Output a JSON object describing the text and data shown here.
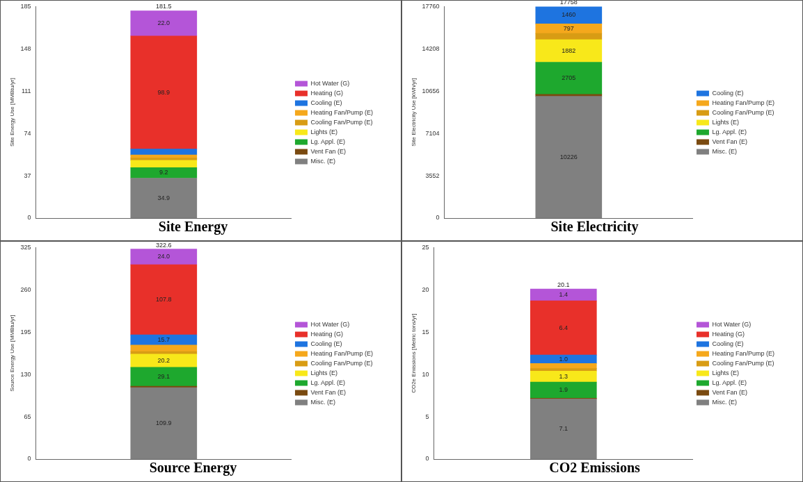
{
  "chart_data": [
    {
      "type": "bar",
      "title": "Site Energy",
      "ylabel": "Site Energy Use [MMBtu/yr]",
      "categories": [
        null
      ],
      "stacked": true,
      "ylim": [
        0,
        185
      ],
      "yticks": [
        0,
        37,
        74,
        111,
        148,
        185
      ],
      "grid": false,
      "legend": "right",
      "tick_labels": "y",
      "totals": [
        "181.5"
      ],
      "series": [
        {
          "name": "Misc. (E)",
          "color": "#808080",
          "values": [
            34.9
          ],
          "value_labels": [
            "34.9"
          ]
        },
        {
          "name": "Vent Fan (E)",
          "color": "#7a4a10",
          "values": [
            null
          ],
          "value_labels": [
            null
          ]
        },
        {
          "name": "Lg. Appl. (E)",
          "color": "#1ea82e",
          "values": [
            9.2
          ],
          "value_labels": [
            "9.2"
          ]
        },
        {
          "name": "Lights (E)",
          "color": "#f8e81a",
          "values": [
            6.4
          ],
          "value_labels": [
            null
          ]
        },
        {
          "name": "Cooling Fan/Pump (E)",
          "color": "#d89c14",
          "values": [
            2.0
          ],
          "value_labels": [
            null
          ]
        },
        {
          "name": "Heating Fan/Pump (E)",
          "color": "#f5a81c",
          "values": [
            2.7
          ],
          "value_labels": [
            null
          ]
        },
        {
          "name": "Cooling (E)",
          "color": "#1e74e0",
          "values": [
            5.2
          ],
          "value_labels": [
            null
          ]
        },
        {
          "name": "Heating (G)",
          "color": "#e8302a",
          "values": [
            98.9
          ],
          "value_labels": [
            "98.9"
          ]
        },
        {
          "name": "Hot Water (G)",
          "color": "#b455d8",
          "values": [
            22.0
          ],
          "value_labels": [
            "22.0"
          ]
        }
      ]
    },
    {
      "type": "bar",
      "title": "Site Electricity",
      "ylabel": "Site Electricity Use [kWh/yr]",
      "categories": [
        null
      ],
      "stacked": true,
      "ylim": [
        0,
        17760
      ],
      "yticks": [
        0,
        3552,
        7104,
        10656,
        14208,
        17760
      ],
      "grid": false,
      "legend": "right",
      "tick_labels": "y",
      "totals": [
        "17758"
      ],
      "series": [
        {
          "name": "Misc. (E)",
          "color": "#808080",
          "values": [
            10226
          ],
          "value_labels": [
            "10226"
          ]
        },
        {
          "name": "Vent Fan (E)",
          "color": "#7a4a10",
          "values": [
            160
          ],
          "value_labels": [
            null
          ]
        },
        {
          "name": "Lg. Appl. (E)",
          "color": "#1ea82e",
          "values": [
            2705
          ],
          "value_labels": [
            "2705"
          ]
        },
        {
          "name": "Lights (E)",
          "color": "#f8e81a",
          "values": [
            1882
          ],
          "value_labels": [
            "1882"
          ]
        },
        {
          "name": "Cooling Fan/Pump (E)",
          "color": "#d89c14",
          "values": [
            530
          ],
          "value_labels": [
            null
          ]
        },
        {
          "name": "Heating Fan/Pump (E)",
          "color": "#f5a81c",
          "values": [
            797
          ],
          "value_labels": [
            "797"
          ]
        },
        {
          "name": "Cooling (E)",
          "color": "#1e74e0",
          "values": [
            1460
          ],
          "value_labels": [
            "1460"
          ]
        }
      ]
    },
    {
      "type": "bar",
      "title": "Source Energy",
      "ylabel": "Source Energy Use [MMBtu/yr]",
      "categories": [
        null
      ],
      "stacked": true,
      "ylim": [
        0,
        325
      ],
      "yticks": [
        0,
        65,
        130,
        195,
        260,
        325
      ],
      "grid": false,
      "legend": "right",
      "tick_labels": "y",
      "totals": [
        "322.6"
      ],
      "series": [
        {
          "name": "Misc. (E)",
          "color": "#808080",
          "values": [
            109.9
          ],
          "value_labels": [
            "109.9"
          ]
        },
        {
          "name": "Vent Fan (E)",
          "color": "#7a4a10",
          "values": [
            2.0
          ],
          "value_labels": [
            null
          ]
        },
        {
          "name": "Lg. Appl. (E)",
          "color": "#1ea82e",
          "values": [
            29.1
          ],
          "value_labels": [
            "29.1"
          ]
        },
        {
          "name": "Lights (E)",
          "color": "#f8e81a",
          "values": [
            20.2
          ],
          "value_labels": [
            "20.2"
          ]
        },
        {
          "name": "Cooling Fan/Pump (E)",
          "color": "#d89c14",
          "values": [
            4
          ],
          "value_labels": [
            null
          ]
        },
        {
          "name": "Heating Fan/Pump (E)",
          "color": "#f5a81c",
          "values": [
            10
          ],
          "value_labels": [
            null
          ]
        },
        {
          "name": "Cooling (E)",
          "color": "#1e74e0",
          "values": [
            15.7
          ],
          "value_labels": [
            "15.7"
          ]
        },
        {
          "name": "Heating (G)",
          "color": "#e8302a",
          "values": [
            107.8
          ],
          "value_labels": [
            "107.8"
          ]
        },
        {
          "name": "Hot Water (G)",
          "color": "#b455d8",
          "values": [
            24.0
          ],
          "value_labels": [
            "24.0"
          ]
        }
      ]
    },
    {
      "type": "bar",
      "title": "CO2 Emissions",
      "ylabel": "CO2e Emissions [Metric tons/yr]",
      "categories": [
        null
      ],
      "stacked": true,
      "ylim": [
        0,
        25
      ],
      "yticks": [
        0,
        5,
        10,
        15,
        20,
        25
      ],
      "grid": false,
      "legend": "right",
      "tick_labels": "y",
      "totals": [
        "20.1"
      ],
      "series": [
        {
          "name": "Misc. (E)",
          "color": "#808080",
          "values": [
            7.1
          ],
          "value_labels": [
            "7.1"
          ]
        },
        {
          "name": "Vent Fan (E)",
          "color": "#7a4a10",
          "values": [
            0.1
          ],
          "value_labels": [
            null
          ]
        },
        {
          "name": "Lg. Appl. (E)",
          "color": "#1ea82e",
          "values": [
            1.9
          ],
          "value_labels": [
            "1.9"
          ]
        },
        {
          "name": "Lights (E)",
          "color": "#f8e81a",
          "values": [
            1.3
          ],
          "value_labels": [
            "1.3"
          ]
        },
        {
          "name": "Cooling Fan/Pump (E)",
          "color": "#d89c14",
          "values": [
            0.3
          ],
          "value_labels": [
            null
          ]
        },
        {
          "name": "Heating Fan/Pump (E)",
          "color": "#f5a81c",
          "values": [
            0.6
          ],
          "value_labels": [
            null
          ]
        },
        {
          "name": "Cooling (E)",
          "color": "#1e74e0",
          "values": [
            1.0
          ],
          "value_labels": [
            "1.0"
          ]
        },
        {
          "name": "Heating (G)",
          "color": "#e8302a",
          "values": [
            6.4
          ],
          "value_labels": [
            "6.4"
          ]
        },
        {
          "name": "Hot Water (G)",
          "color": "#b455d8",
          "values": [
            1.4
          ],
          "value_labels": [
            "1.4"
          ]
        }
      ]
    }
  ]
}
